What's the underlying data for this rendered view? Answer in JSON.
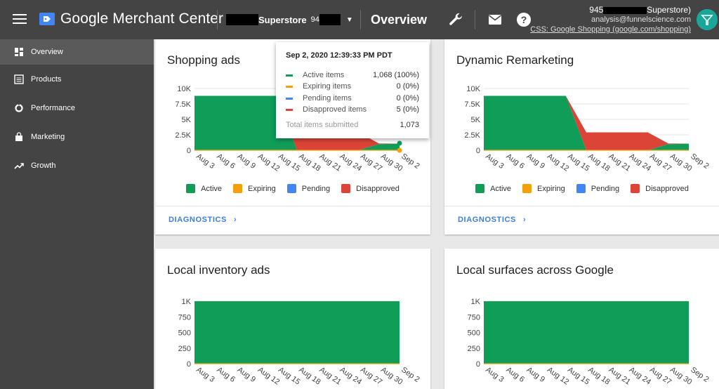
{
  "app": {
    "brand": "Google Merchant Center",
    "account_name": "Superstore",
    "account_id_prefix": "94",
    "page_title": "Overview",
    "icons": {
      "tools": "wrench-icon",
      "messages": "mail-icon",
      "help": "help-icon"
    }
  },
  "user": {
    "name_prefix": "945",
    "name_suffix": "Superstore)",
    "email": "analysis@funnelscience.com",
    "css": "CSS: Google Shopping (google.com/shopping)"
  },
  "sidebar": {
    "items": [
      {
        "label": "Overview",
        "icon": "dashboard-icon",
        "active": true
      },
      {
        "label": "Products",
        "icon": "list-icon",
        "active": false
      },
      {
        "label": "Performance",
        "icon": "donut-icon",
        "active": false
      },
      {
        "label": "Marketing",
        "icon": "bag-icon",
        "active": false
      },
      {
        "label": "Growth",
        "icon": "trending-up-icon",
        "active": false
      }
    ]
  },
  "colors": {
    "active": "#0f9d58",
    "expiring": "#f4a00a",
    "pending": "#4285f4",
    "disapproved": "#db4437"
  },
  "legend": {
    "active": "Active",
    "expiring": "Expiring",
    "pending": "Pending",
    "disapproved": "Disapproved"
  },
  "diagnostics_label": "DIAGNOSTICS",
  "tooltip": {
    "title": "Sep 2, 2020 12:39:33 PM PDT",
    "rows": [
      {
        "label": "Active items",
        "value": "1,068 (100%)",
        "color": "#0f9d58"
      },
      {
        "label": "Expiring items",
        "value": "0 (0%)",
        "color": "#f4a00a"
      },
      {
        "label": "Pending items",
        "value": "0 (0%)",
        "color": "#4285f4"
      },
      {
        "label": "Disapproved items",
        "value": "5 (0%)",
        "color": "#db4437"
      }
    ],
    "total_label": "Total items submitted",
    "total_value": "1,073"
  },
  "cards": [
    {
      "title": "Shopping ads",
      "has_diagnostics": true
    },
    {
      "title": "Dynamic Remarketing",
      "has_diagnostics": true
    },
    {
      "title": "Local inventory ads",
      "has_diagnostics": false
    },
    {
      "title": "Local surfaces across Google",
      "has_diagnostics": false
    }
  ],
  "chart_data": [
    {
      "type": "area",
      "title": "Shopping ads",
      "x": [
        "Aug 3",
        "Aug 6",
        "Aug 9",
        "Aug 12",
        "Aug 15",
        "Aug 18",
        "Aug 21",
        "Aug 24",
        "Aug 27",
        "Aug 30",
        "Sep 2"
      ],
      "x_tick_labels": [
        "Aug 3",
        "Aug 6",
        "Aug 9",
        "Aug 12",
        "Aug 15",
        "Aug 18",
        "Aug 21",
        "Aug 24",
        "Aug 27",
        "Aug 30",
        "Sep 2"
      ],
      "y_tick_labels": [
        "0",
        "2.5K",
        "5K",
        "7.5K",
        "10K"
      ],
      "ylim": [
        0,
        10000
      ],
      "series": [
        {
          "name": "Active",
          "values": [
            8800,
            8800,
            8800,
            8800,
            8800,
            0,
            0,
            0,
            0,
            1000,
            1068
          ]
        },
        {
          "name": "Disapproved",
          "values": [
            0,
            0,
            0,
            0,
            0,
            2900,
            2900,
            2900,
            2900,
            100,
            5
          ]
        }
      ]
    },
    {
      "type": "area",
      "title": "Dynamic Remarketing",
      "x": [
        "Aug 3",
        "Aug 6",
        "Aug 9",
        "Aug 12",
        "Aug 15",
        "Aug 18",
        "Aug 21",
        "Aug 24",
        "Aug 27",
        "Aug 30",
        "Sep 2"
      ],
      "x_tick_labels": [
        "Aug 3",
        "Aug 6",
        "Aug 9",
        "Aug 12",
        "Aug 15",
        "Aug 18",
        "Aug 21",
        "Aug 24",
        "Aug 27",
        "Aug 30",
        "Sep 2"
      ],
      "y_tick_labels": [
        "0",
        "2.5K",
        "5K",
        "7.5K",
        "10K"
      ],
      "ylim": [
        0,
        10000
      ],
      "series": [
        {
          "name": "Active",
          "values": [
            8800,
            8800,
            8800,
            8800,
            8800,
            0,
            0,
            0,
            0,
            1000,
            1068
          ]
        },
        {
          "name": "Disapproved",
          "values": [
            0,
            0,
            0,
            0,
            0,
            2900,
            2900,
            2900,
            2900,
            100,
            5
          ]
        }
      ]
    },
    {
      "type": "area",
      "title": "Local inventory ads",
      "x": [
        "Aug 3",
        "Aug 6",
        "Aug 9",
        "Aug 12",
        "Aug 15",
        "Aug 18",
        "Aug 21",
        "Aug 24",
        "Aug 27",
        "Aug 30",
        "Sep 2"
      ],
      "x_tick_labels": [
        "Aug 3",
        "Aug 6",
        "Aug 9",
        "Aug 12",
        "Aug 15",
        "Aug 18",
        "Aug 21",
        "Aug 24",
        "Aug 27",
        "Aug 30",
        "Sep 2"
      ],
      "y_tick_labels": [
        "0",
        "250",
        "500",
        "750",
        "1K"
      ],
      "ylim": [
        0,
        1000
      ],
      "series": [
        {
          "name": "Active",
          "values": [
            1000,
            1000,
            1000,
            1000,
            1000,
            1000,
            1000,
            1000,
            1000,
            1000,
            1000
          ]
        },
        {
          "name": "Disapproved",
          "values": [
            0,
            0,
            0,
            0,
            0,
            0,
            0,
            0,
            0,
            0,
            0
          ]
        }
      ]
    },
    {
      "type": "area",
      "title": "Local surfaces across Google",
      "x": [
        "Aug 3",
        "Aug 6",
        "Aug 9",
        "Aug 12",
        "Aug 15",
        "Aug 18",
        "Aug 21",
        "Aug 24",
        "Aug 27",
        "Aug 30",
        "Sep 2"
      ],
      "x_tick_labels": [
        "Aug 3",
        "Aug 6",
        "Aug 9",
        "Aug 12",
        "Aug 15",
        "Aug 18",
        "Aug 21",
        "Aug 24",
        "Aug 27",
        "Aug 30",
        "Sep 2"
      ],
      "y_tick_labels": [
        "0",
        "250",
        "500",
        "750",
        "1K"
      ],
      "ylim": [
        0,
        1000
      ],
      "series": [
        {
          "name": "Active",
          "values": [
            1000,
            1000,
            1000,
            1000,
            1000,
            1000,
            1000,
            1000,
            1000,
            1000,
            1000
          ]
        },
        {
          "name": "Disapproved",
          "values": [
            0,
            0,
            0,
            0,
            0,
            0,
            0,
            0,
            0,
            0,
            0
          ]
        }
      ]
    }
  ]
}
